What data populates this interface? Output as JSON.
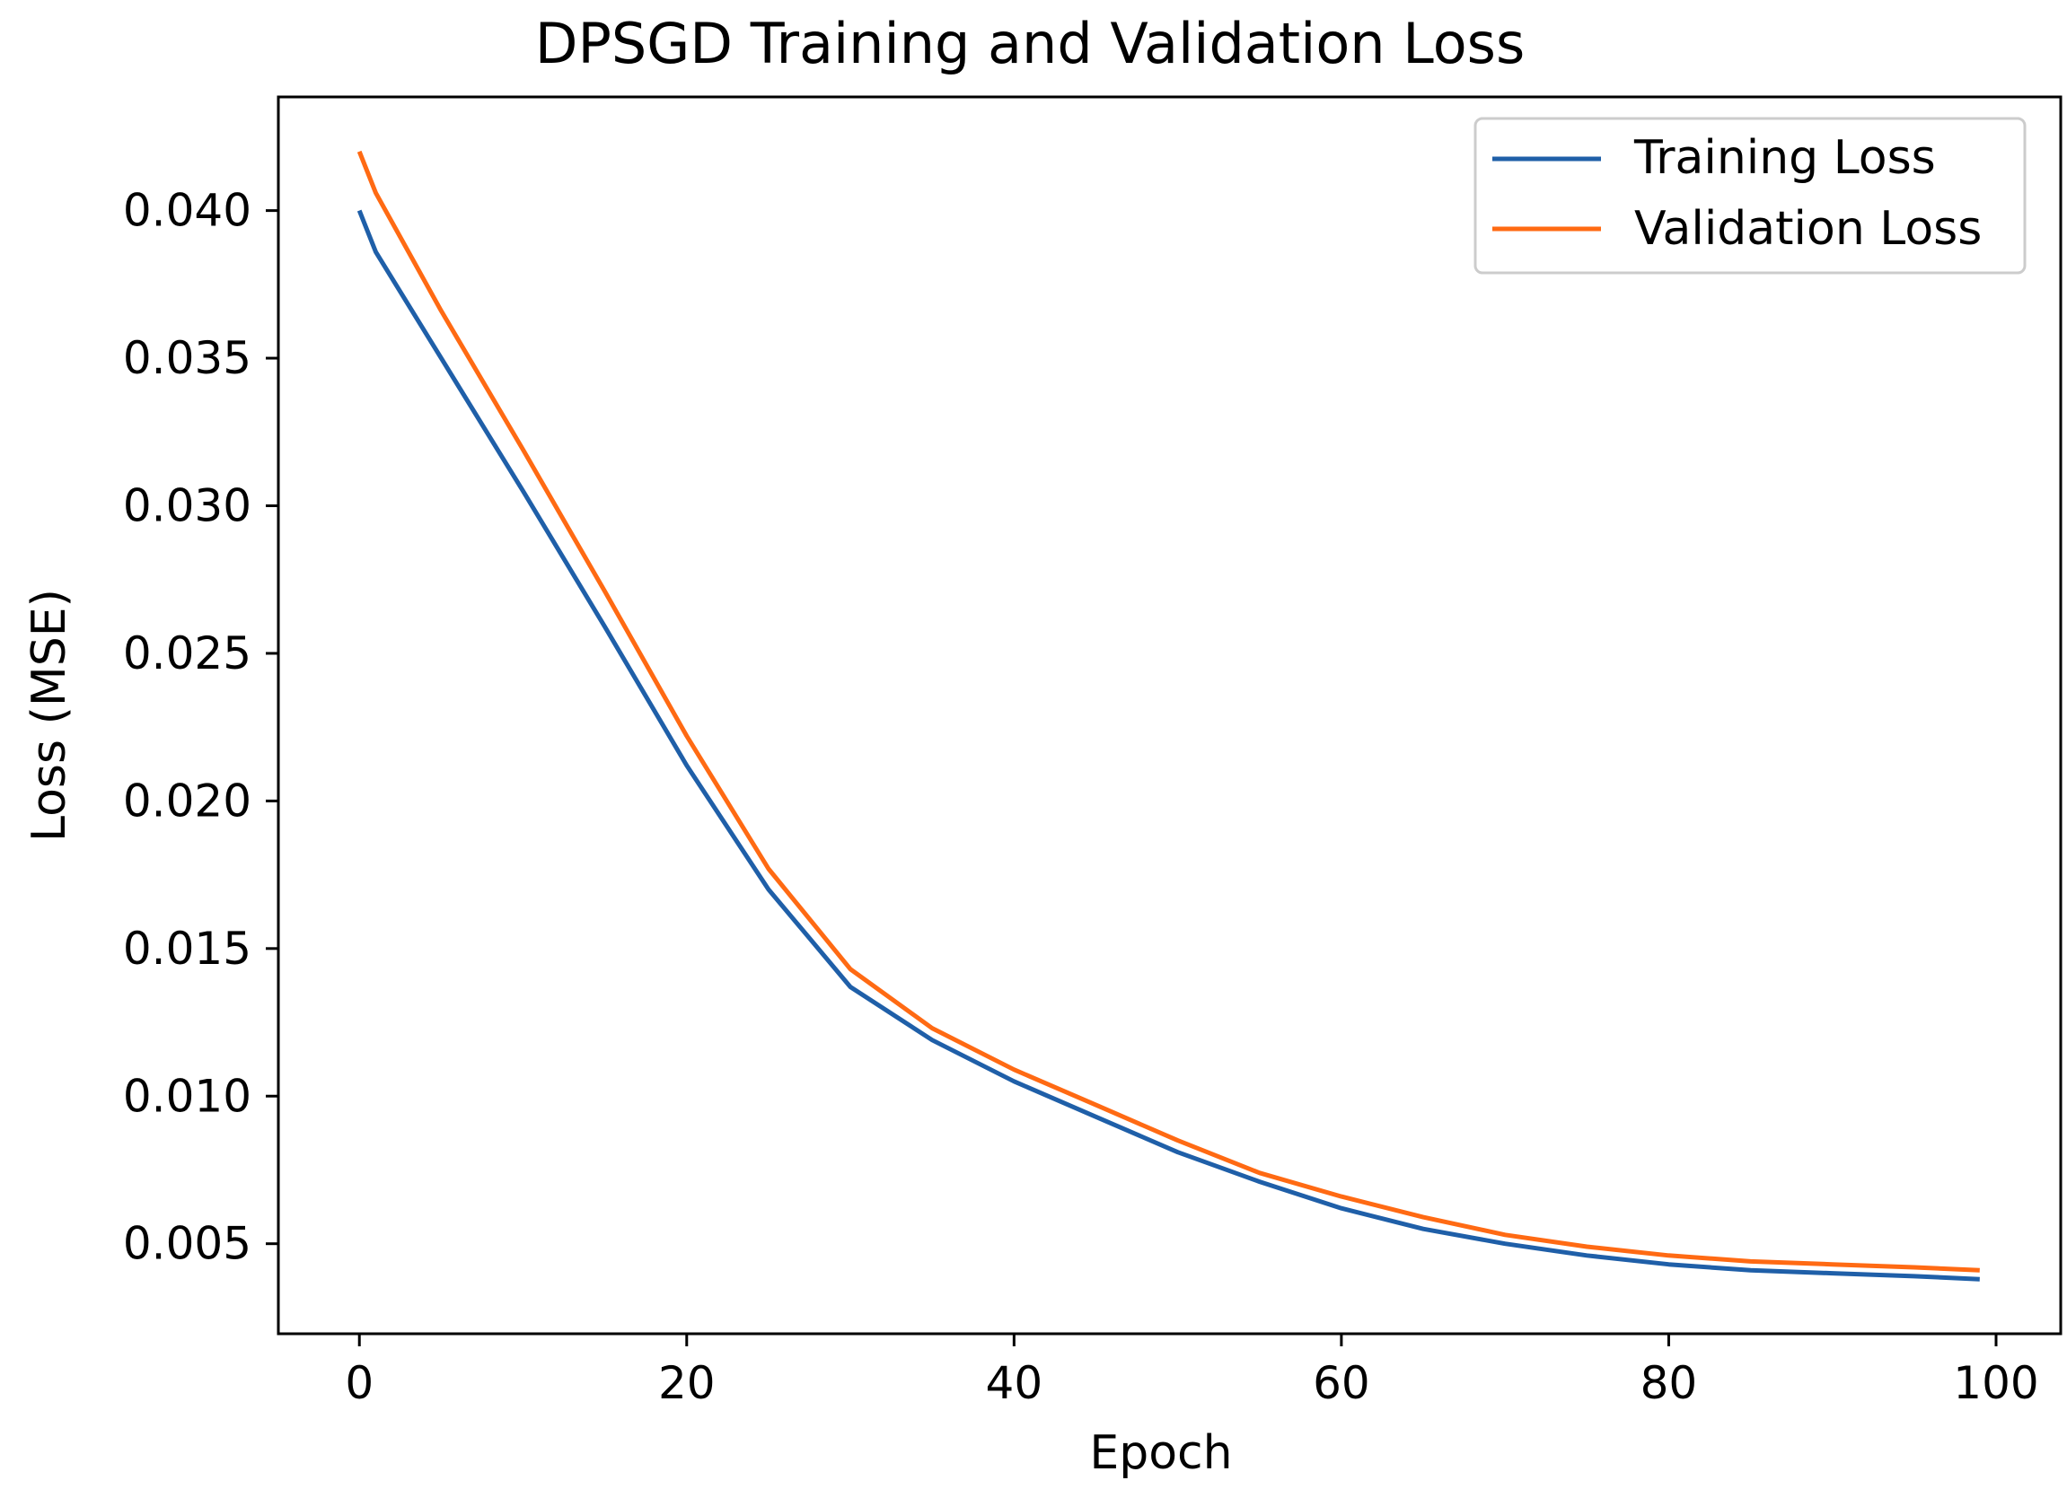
{
  "chart_data": {
    "type": "line",
    "title": "DPSGD Training and Validation Loss",
    "xlabel": "Epoch",
    "ylabel": "Loss (MSE)",
    "xlim": [
      -4.95,
      103.95
    ],
    "ylim": [
      0.00195,
      0.04385
    ],
    "grid": false,
    "legend_position": "top-right",
    "x_ticks": [
      0,
      20,
      40,
      60,
      80,
      100
    ],
    "x_tick_labels": [
      "0",
      "20",
      "40",
      "60",
      "80",
      "100"
    ],
    "y_ticks": [
      0.005,
      0.01,
      0.015,
      0.02,
      0.025,
      0.03,
      0.035,
      0.04
    ],
    "y_tick_labels": [
      "0.005",
      "0.010",
      "0.015",
      "0.020",
      "0.025",
      "0.030",
      "0.035",
      "0.040"
    ],
    "x": [
      0,
      1,
      5,
      10,
      15,
      20,
      25,
      30,
      35,
      40,
      45,
      50,
      55,
      60,
      65,
      70,
      75,
      80,
      85,
      90,
      95,
      99
    ],
    "series": [
      {
        "name": "Training Loss",
        "color": "#1f5fa8",
        "values": [
          0.04,
          0.0386,
          0.035,
          0.0305,
          0.0259,
          0.0212,
          0.017,
          0.0137,
          0.0119,
          0.0105,
          0.0093,
          0.0081,
          0.0071,
          0.0062,
          0.0055,
          0.005,
          0.0046,
          0.0043,
          0.0041,
          0.004,
          0.0039,
          0.0038
        ]
      },
      {
        "name": "Validation Loss",
        "color": "#ff6a13",
        "values": [
          0.042,
          0.0406,
          0.0366,
          0.0319,
          0.0271,
          0.0222,
          0.0177,
          0.0143,
          0.0123,
          0.0109,
          0.0097,
          0.0085,
          0.0074,
          0.0066,
          0.0059,
          0.0053,
          0.0049,
          0.0046,
          0.0044,
          0.0043,
          0.0042,
          0.0041
        ]
      }
    ]
  }
}
